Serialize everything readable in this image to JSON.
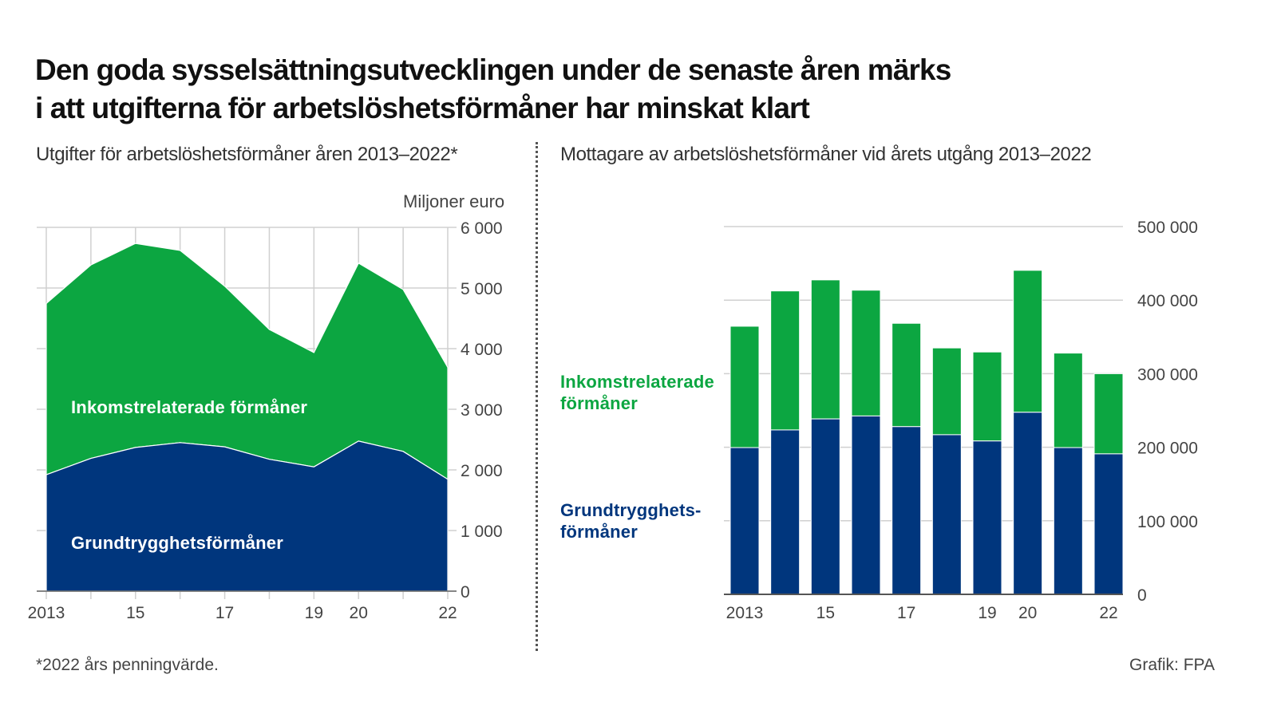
{
  "title": {
    "line1": "Den goda sysselsättningsutvecklingen under de senaste åren märks",
    "line2": "i att utgifterna för arbetslöshetsförmåner har minskat klart"
  },
  "footnote": "*2022 års penningvärde.",
  "credit": "Grafik: FPA",
  "colors": {
    "grund": "#00367d",
    "inkomst": "#0ca641",
    "grid": "#d0d0d0"
  },
  "chart_data": [
    {
      "type": "area",
      "stacked": true,
      "title": "Utgifter för arbetslöshetsförmåner åren 2013–2022*",
      "ylabel": "Miljoner euro",
      "x": [
        2013,
        2014,
        2015,
        2016,
        2017,
        2018,
        2019,
        2020,
        2021,
        2022
      ],
      "x_tick_labels": [
        "2013",
        "",
        "15",
        "",
        "17",
        "",
        "19",
        "20",
        "",
        "22"
      ],
      "ylim": [
        0,
        6000
      ],
      "y_ticks": [
        0,
        1000,
        2000,
        3000,
        4000,
        5000,
        6000
      ],
      "y_tick_labels": [
        "0",
        "1 000",
        "2 000",
        "3 000",
        "4 000",
        "5 000",
        "6 000"
      ],
      "grid": true,
      "series": [
        {
          "name": "Grundtrygghetsförmåner",
          "values": [
            1920,
            2190,
            2370,
            2450,
            2380,
            2175,
            2050,
            2475,
            2305,
            1845
          ]
        },
        {
          "name": "Inkomstrelaterade förmåner",
          "values": [
            2825,
            3190,
            3365,
            3170,
            2650,
            2140,
            1885,
            2935,
            2670,
            1845
          ]
        }
      ]
    },
    {
      "type": "bar",
      "stacked": true,
      "title": "Mottagare av arbetslöshetsförmåner vid årets utgång 2013–2022",
      "x": [
        2013,
        2014,
        2015,
        2016,
        2017,
        2018,
        2019,
        2020,
        2021,
        2022
      ],
      "x_tick_labels": [
        "2013",
        "",
        "15",
        "",
        "17",
        "",
        "19",
        "20",
        "",
        "22"
      ],
      "ylim": [
        0,
        500000
      ],
      "y_ticks": [
        0,
        100000,
        200000,
        300000,
        400000,
        500000
      ],
      "y_tick_labels": [
        "0",
        "100 000",
        "200 000",
        "300 000",
        "400 000",
        "500 000"
      ],
      "grid": true,
      "series": [
        {
          "name": "Grundtrygghets-förmåner",
          "label_lines": [
            "Grundtrygghets-",
            "förmåner"
          ],
          "values": [
            199500,
            223500,
            238500,
            242500,
            228000,
            217000,
            208500,
            247500,
            199500,
            191000
          ]
        },
        {
          "name": "Inkomstrelaterade förmåner",
          "label_lines": [
            "Inkomstrelaterade",
            "förmåner"
          ],
          "values": [
            165000,
            189000,
            189000,
            171000,
            140500,
            118000,
            121000,
            193000,
            128500,
            109000
          ]
        }
      ]
    }
  ]
}
